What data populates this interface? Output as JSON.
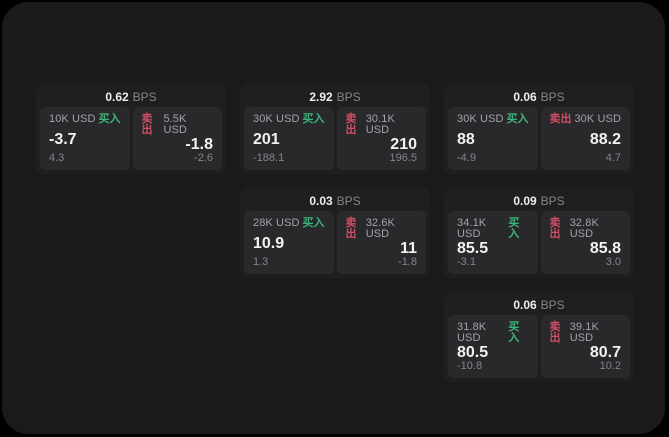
{
  "window": {
    "background": "#000000",
    "surface_color": "#1a1a1b"
  },
  "labels": {
    "bps_unit": "BPS",
    "buy": "买入",
    "sell": "卖出"
  },
  "colors": {
    "surface_bg": "#1a1a1b",
    "card_bg": "#1f1f20",
    "tile_bg": "#29292b",
    "buy_accent": "#3db578",
    "sell_accent": "#cc4f63",
    "value_text": "#f2f2f2",
    "label_text": "#a3a3aa",
    "muted_text": "#85858b"
  },
  "cards": [
    {
      "row": 0,
      "col": 0,
      "bps": "0.62",
      "buy": {
        "amount": "10K USD",
        "value": "-3.7",
        "sub": "4.3"
      },
      "sell": {
        "amount": "5.5K USD",
        "value": "-1.8",
        "sub": "-2.6"
      }
    },
    {
      "row": 0,
      "col": 1,
      "bps": "2.92",
      "buy": {
        "amount": "30K USD",
        "value": "201",
        "sub": "-188.1"
      },
      "sell": {
        "amount": "30.1K USD",
        "value": "210",
        "sub": "196.5"
      }
    },
    {
      "row": 0,
      "col": 2,
      "bps": "0.06",
      "buy": {
        "amount": "30K USD",
        "value": "88",
        "sub": "-4.9"
      },
      "sell": {
        "amount": "30K USD",
        "value": "88.2",
        "sub": "4.7"
      }
    },
    {
      "row": 1,
      "col": 1,
      "bps": "0.03",
      "buy": {
        "amount": "28K USD",
        "value": "10.9",
        "sub": "1.3"
      },
      "sell": {
        "amount": "32.6K USD",
        "value": "11",
        "sub": "-1.8"
      }
    },
    {
      "row": 1,
      "col": 2,
      "bps": "0.09",
      "buy": {
        "amount": "34.1K USD",
        "value": "85.5",
        "sub": "-3.1"
      },
      "sell": {
        "amount": "32.8K USD",
        "value": "85.8",
        "sub": "3.0"
      }
    },
    {
      "row": 2,
      "col": 2,
      "bps": "0.06",
      "buy": {
        "amount": "31.8K USD",
        "value": "80.5",
        "sub": "-10.8"
      },
      "sell": {
        "amount": "39.1K USD",
        "value": "80.7",
        "sub": "10.2"
      }
    }
  ]
}
